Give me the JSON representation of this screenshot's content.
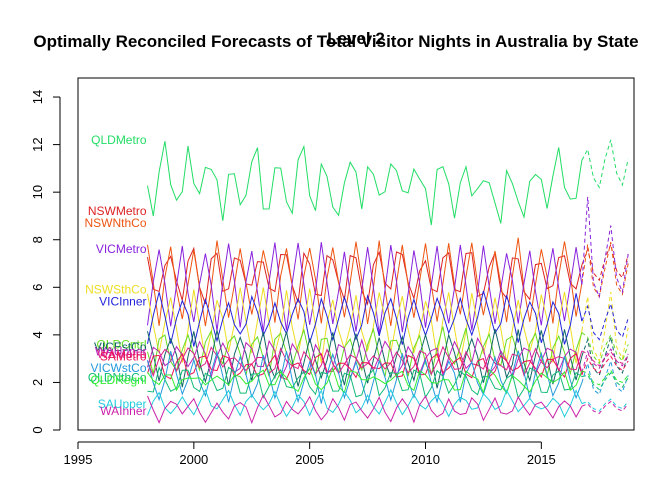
{
  "chart_data": {
    "type": "line",
    "title": "Optimally Reconciled Forecasts of Total Visitor Nights in Australia by State",
    "subtitle": "Level 2",
    "xlabel": "",
    "ylabel": "",
    "xlim": [
      1995,
      2019
    ],
    "ylim": [
      0,
      14.8
    ],
    "x_ticks": [
      1995,
      2000,
      2005,
      2010,
      2015
    ],
    "y_ticks": [
      0,
      2,
      4,
      6,
      8,
      10,
      12,
      14
    ],
    "grid": false,
    "legend": "none",
    "x_start": 1998.0,
    "x_step": 0.25,
    "history_quarters": 76,
    "forecast_quarters": 8,
    "series": [
      {
        "name": "QLDMetro",
        "color": "#22DD66",
        "base": 10.3,
        "amp": 1.0,
        "trend": 0.02,
        "noise": 0.9,
        "phase": 0.3,
        "forecast": [
          11.8,
          10.6,
          10.2,
          11.4,
          12.2,
          10.8,
          10.3,
          11.4
        ]
      },
      {
        "name": "NSWMetro",
        "color": "#DD2222",
        "base": 6.5,
        "amp": 1.0,
        "trend": 0.0,
        "noise": 0.4,
        "phase": 0.1,
        "forecast": [
          7.6,
          6.6,
          6.3,
          7.2,
          7.8,
          6.7,
          6.4,
          7.4
        ]
      },
      {
        "name": "NSWNthCo",
        "color": "#EE5511",
        "base": 6.2,
        "amp": 1.6,
        "trend": 0.0,
        "noise": 0.3,
        "phase": 0.0,
        "forecast": [
          7.8,
          6.0,
          5.6,
          6.8,
          7.9,
          6.1,
          5.7,
          7.0
        ]
      },
      {
        "name": "VICMetro",
        "color": "#8822DD",
        "base": 6.0,
        "amp": 1.7,
        "trend": 0.0,
        "noise": 0.3,
        "phase": 0.5,
        "forecast": [
          9.8,
          6.2,
          5.6,
          7.2,
          8.6,
          6.4,
          5.8,
          7.4
        ]
      },
      {
        "name": "NSWSthCo",
        "color": "#EEDD22",
        "base": 4.4,
        "amp": 1.3,
        "trend": 0.0,
        "noise": 0.3,
        "phase": 0.0,
        "forecast": [
          5.6,
          3.4,
          2.9,
          4.2,
          5.8,
          3.5,
          3.0,
          4.3
        ]
      },
      {
        "name": "VICInner",
        "color": "#2222DD",
        "base": 4.7,
        "amp": 0.9,
        "trend": 0.0,
        "noise": 0.3,
        "phase": 0.5,
        "forecast": [
          5.2,
          4.1,
          3.8,
          4.6,
          5.3,
          4.2,
          3.9,
          4.7
        ]
      },
      {
        "name": "QLDCntrl",
        "color": "#66DD22",
        "base": 3.3,
        "amp": 0.8,
        "trend": 0.0,
        "noise": 0.3,
        "phase": 0.3,
        "forecast": [
          3.9,
          3.1,
          2.8,
          3.5,
          4.0,
          3.2,
          2.9,
          3.6
        ]
      },
      {
        "name": "VICEstCo",
        "color": "#116666",
        "base": 3.0,
        "amp": 1.0,
        "trend": 0.0,
        "noise": 0.25,
        "phase": 0.0,
        "forecast": [
          3.8,
          2.6,
          2.3,
          3.1,
          3.9,
          2.7,
          2.4,
          3.2
        ]
      },
      {
        "name": "WAUpper",
        "color": "#BB22BB",
        "base": 3.0,
        "amp": 0.6,
        "trend": 0.0,
        "noise": 0.3,
        "phase": 0.7,
        "forecast": [
          3.3,
          2.8,
          2.6,
          3.1,
          3.4,
          2.9,
          2.7,
          3.2
        ]
      },
      {
        "name": "WAMetro",
        "color": "#DD2288",
        "base": 2.9,
        "amp": 0.4,
        "trend": 0.0,
        "noise": 0.25,
        "phase": 0.2,
        "forecast": [
          3.2,
          2.9,
          2.7,
          3.0,
          3.3,
          2.9,
          2.8,
          3.1
        ]
      },
      {
        "name": "SAMetro",
        "color": "#EE1155",
        "base": 2.7,
        "amp": 0.4,
        "trend": 0.0,
        "noise": 0.25,
        "phase": 0.6,
        "forecast": [
          3.0,
          2.6,
          2.4,
          2.8,
          3.1,
          2.7,
          2.5,
          2.9
        ]
      },
      {
        "name": "VICWstCo",
        "color": "#2299DD",
        "base": 2.2,
        "amp": 0.9,
        "trend": 0.0,
        "noise": 0.25,
        "phase": 0.0,
        "forecast": [
          2.8,
          1.7,
          1.5,
          2.2,
          2.9,
          1.8,
          1.6,
          2.3
        ]
      },
      {
        "name": "QLDNthCo",
        "color": "#11BB77",
        "base": 2.0,
        "amp": 0.5,
        "trend": 0.0,
        "noise": 0.25,
        "phase": 0.4,
        "forecast": [
          2.3,
          1.9,
          1.7,
          2.1,
          2.4,
          2.0,
          1.8,
          2.2
        ]
      },
      {
        "name": "QLDRegnl",
        "color": "#33EE33",
        "base": 2.1,
        "amp": 0.3,
        "trend": 0.0,
        "noise": 0.3,
        "phase": 0.1,
        "forecast": [
          2.4,
          2.0,
          1.9,
          2.2,
          2.5,
          2.1,
          2.0,
          2.3
        ]
      },
      {
        "name": "SAUpper",
        "color": "#22CCDD",
        "base": 1.1,
        "amp": 0.4,
        "trend": 0.0,
        "noise": 0.2,
        "phase": 0.5,
        "forecast": [
          1.2,
          0.9,
          0.8,
          1.1,
          1.3,
          1.0,
          0.9,
          1.2
        ]
      },
      {
        "name": "WAInner",
        "color": "#CC22AA",
        "base": 0.9,
        "amp": 0.4,
        "trend": 0.0,
        "noise": 0.2,
        "phase": 0.0,
        "forecast": [
          1.1,
          0.8,
          0.7,
          1.0,
          1.2,
          0.9,
          0.8,
          1.1
        ]
      }
    ],
    "labels": [
      {
        "text": "QLDMetro",
        "y": 12.2,
        "color": "#22DD66"
      },
      {
        "text": "NSWMetro",
        "y": 9.2,
        "color": "#DD2222"
      },
      {
        "text": "NSWNthCo",
        "y": 8.7,
        "color": "#EE5511"
      },
      {
        "text": "VICMetro",
        "y": 7.6,
        "color": "#8822DD"
      },
      {
        "text": "NSWSthCo",
        "y": 5.9,
        "color": "#EEDD22"
      },
      {
        "text": "VICInner",
        "y": 5.4,
        "color": "#2222DD"
      },
      {
        "text": "QLDCntrl",
        "y": 3.6,
        "color": "#66DD22"
      },
      {
        "text": "VICEstCo",
        "y": 3.5,
        "color": "#116666"
      },
      {
        "text": "WAUpper",
        "y": 3.3,
        "color": "#BB22BB"
      },
      {
        "text": "WAMetro",
        "y": 3.2,
        "color": "#DD2288"
      },
      {
        "text": "SAMetro",
        "y": 3.1,
        "color": "#EE1155"
      },
      {
        "text": "VICWstCo",
        "y": 2.6,
        "color": "#2299DD"
      },
      {
        "text": "QLDNthCo",
        "y": 2.2,
        "color": "#11BB77"
      },
      {
        "text": "QLDRegnl",
        "y": 2.1,
        "color": "#33EE33"
      },
      {
        "text": "SAUpper",
        "y": 1.1,
        "color": "#22CCDD"
      },
      {
        "text": "WAInner",
        "y": 0.8,
        "color": "#CC22AA"
      }
    ]
  }
}
